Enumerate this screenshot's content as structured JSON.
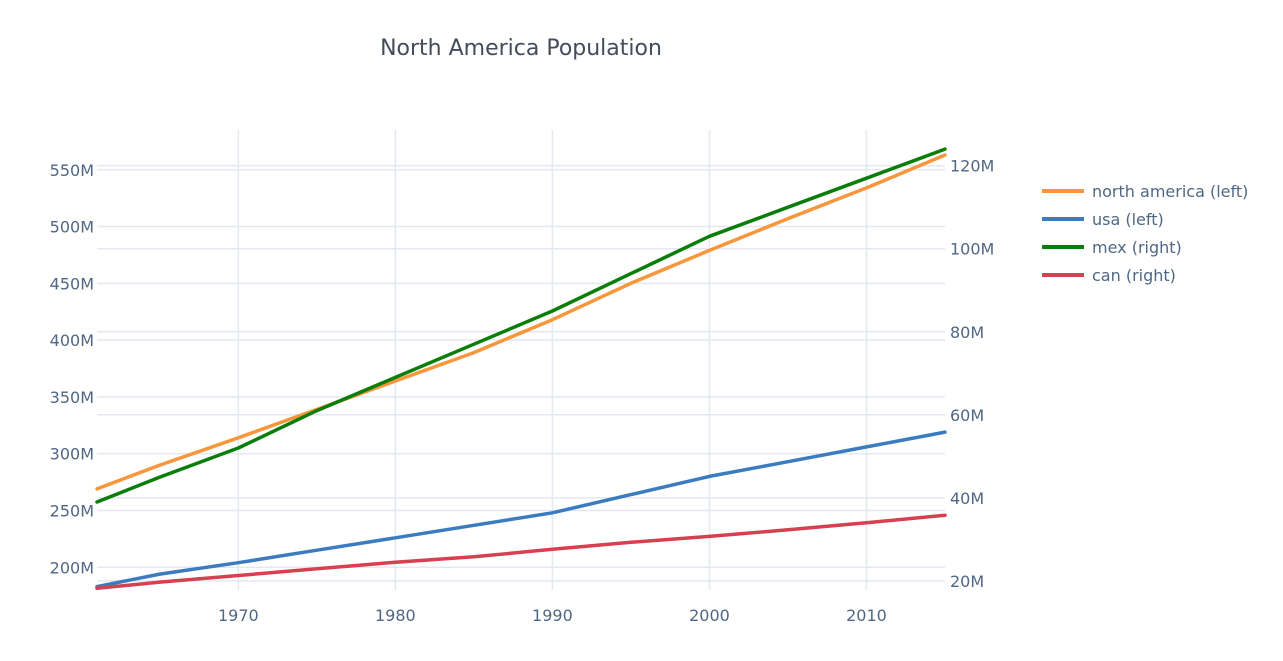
{
  "chart_data": {
    "type": "line",
    "title": "North America Population",
    "x_ticks": [
      1970,
      1980,
      1990,
      2000,
      2010
    ],
    "xlim": [
      1961,
      2015
    ],
    "y_left": {
      "ticks": [
        200,
        250,
        300,
        350,
        400,
        450,
        500,
        550
      ],
      "tick_labels": [
        "200M",
        "250M",
        "300M",
        "350M",
        "400M",
        "450M",
        "500M",
        "550M"
      ],
      "range": [
        180,
        585
      ],
      "units": "millions"
    },
    "y_right": {
      "ticks": [
        20,
        40,
        60,
        80,
        100,
        120
      ],
      "tick_labels": [
        "20M",
        "40M",
        "60M",
        "80M",
        "100M",
        "120M"
      ],
      "range": [
        17.8,
        128.6
      ],
      "units": "millions"
    },
    "grid": "on",
    "legend_placement": "top-right",
    "series": [
      {
        "name": "north america (left)",
        "axis": "left",
        "color": "#f7963b",
        "x": [
          1961,
          1965,
          1970,
          1975,
          1980,
          1985,
          1990,
          1995,
          2000,
          2005,
          2010,
          2015
        ],
        "values": [
          269,
          290,
          314,
          339,
          364,
          389,
          418,
          450,
          479,
          507,
          534,
          563
        ]
      },
      {
        "name": "usa (left)",
        "axis": "left",
        "color": "#3b7cc0",
        "x": [
          1961,
          1965,
          1970,
          1975,
          1980,
          1985,
          1990,
          1995,
          2000,
          2005,
          2010,
          2015
        ],
        "values": [
          183,
          194,
          204,
          215,
          226,
          237,
          248,
          264,
          280,
          293,
          306,
          319
        ]
      },
      {
        "name": "mex (right)",
        "axis": "right",
        "color": "#0a7d0a",
        "x": [
          1961,
          1965,
          1970,
          1975,
          1980,
          1985,
          1990,
          1995,
          2000,
          2005,
          2010,
          2015
        ],
        "values": [
          39,
          45,
          52,
          61,
          69,
          77,
          85,
          94,
          103,
          110,
          117,
          124
        ]
      },
      {
        "name": "can (right)",
        "axis": "right",
        "color": "#d64050",
        "x": [
          1961,
          1965,
          1970,
          1975,
          1980,
          1985,
          1990,
          1995,
          2000,
          2005,
          2010,
          2015
        ],
        "values": [
          18.2,
          19.7,
          21.3,
          22.9,
          24.5,
          25.8,
          27.6,
          29.3,
          30.7,
          32.3,
          34.0,
          35.8
        ]
      }
    ]
  }
}
